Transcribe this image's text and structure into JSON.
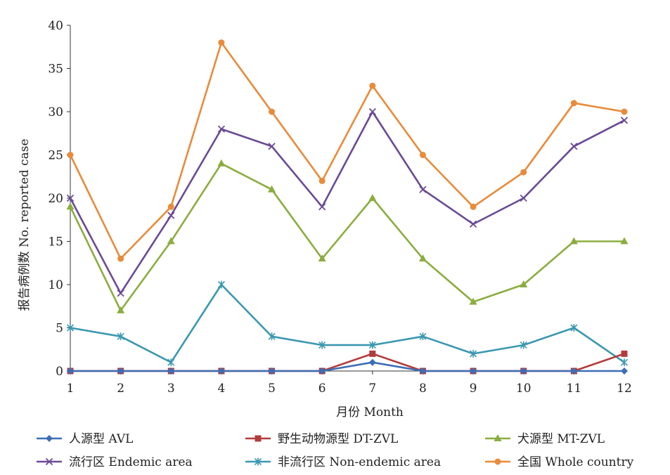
{
  "chart_data": {
    "type": "line",
    "xlabel": "月份 Month",
    "ylabel": "报告病例数 No. reported case",
    "x": [
      1,
      2,
      3,
      4,
      5,
      6,
      7,
      8,
      9,
      10,
      11,
      12
    ],
    "ylim": [
      0,
      40
    ],
    "yticks": [
      0,
      5,
      10,
      15,
      20,
      25,
      30,
      35,
      40
    ],
    "grid": false,
    "legend_position": "bottom",
    "series": [
      {
        "name": "人源型 AVL",
        "color": "#3d6eb5",
        "marker": "diamond",
        "values": [
          0,
          0,
          0,
          0,
          0,
          0,
          1,
          0,
          0,
          0,
          0,
          0
        ]
      },
      {
        "name": "野生动物源型 DT-ZVL",
        "color": "#b23c3c",
        "marker": "square",
        "values": [
          0,
          0,
          0,
          0,
          0,
          0,
          2,
          0,
          0,
          0,
          0,
          2
        ]
      },
      {
        "name": "犬源型 MT-ZVL",
        "color": "#8bad3f",
        "marker": "triangle",
        "values": [
          19,
          7,
          15,
          24,
          21,
          13,
          20,
          13,
          8,
          10,
          15,
          15
        ]
      },
      {
        "name": "流行区 Endemic area",
        "color": "#6a4a94",
        "marker": "x",
        "values": [
          20,
          9,
          18,
          28,
          26,
          19,
          30,
          21,
          17,
          20,
          26,
          29
        ]
      },
      {
        "name": "非流行区 Non-endemic area",
        "color": "#3b98b0",
        "marker": "star",
        "values": [
          5,
          4,
          1,
          10,
          4,
          3,
          3,
          4,
          2,
          3,
          5,
          1
        ]
      },
      {
        "name": "全国 Whole country",
        "color": "#e88b3a",
        "marker": "circle",
        "values": [
          25,
          13,
          19,
          38,
          30,
          22,
          33,
          25,
          19,
          23,
          31,
          30
        ]
      }
    ]
  }
}
